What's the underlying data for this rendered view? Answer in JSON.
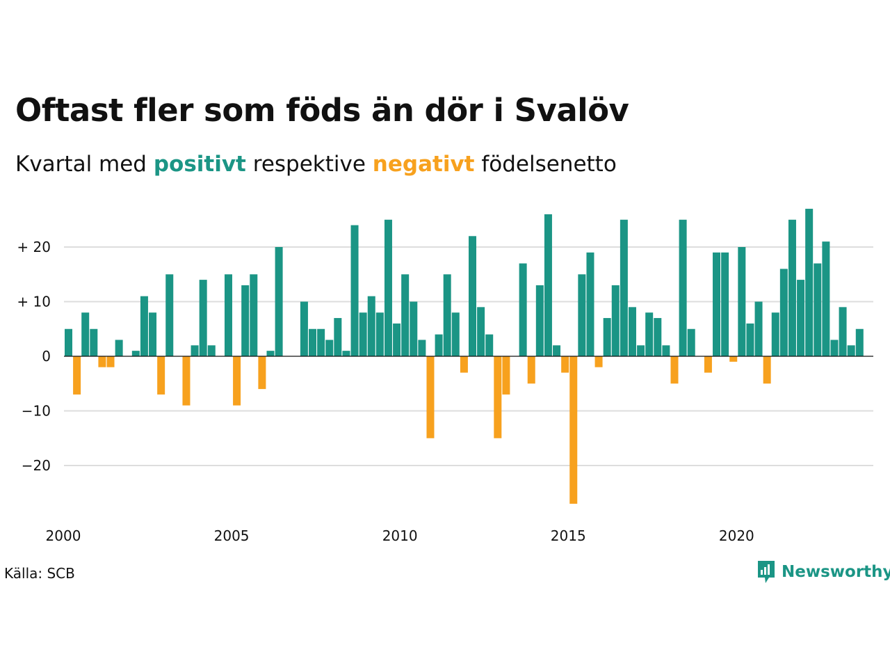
{
  "title": "Oftast fler som föds än dör i Svalöv",
  "subtitle": {
    "part1": "Kvartal med",
    "positive_word": "positivt",
    "part2": "respektive",
    "negative_word": "negativt",
    "part3": "födelsenetto"
  },
  "colors": {
    "positive": "#1b9585",
    "negative": "#f7a11e",
    "grid": "#dddddd",
    "zero_line": "#111111"
  },
  "source": "Källa: SCB",
  "brand": {
    "name": "Newsworthy",
    "icon": "newsworthy-logo-icon"
  },
  "chart_data": {
    "type": "bar",
    "x_start": "2000 Q1",
    "x_end": "2023 Q4",
    "x_tick_labels": [
      "2000",
      "2005",
      "2010",
      "2015",
      "2020"
    ],
    "y_tick_labels": [
      "+ 20",
      "+ 10",
      "0",
      "−10",
      "−20"
    ],
    "ylim": [
      -29,
      30
    ],
    "grid": true,
    "series": [
      {
        "values": [
          5,
          -7,
          8,
          5,
          -2,
          -2,
          3,
          0,
          1,
          11,
          8,
          -7,
          15,
          0,
          -9,
          2,
          14,
          2,
          0,
          15,
          -9,
          13,
          15,
          -6,
          1,
          20,
          0,
          0,
          10,
          5,
          5,
          3,
          7,
          1,
          24,
          8,
          11,
          8,
          25,
          6,
          15,
          10,
          3,
          -15,
          4,
          15,
          8,
          -3,
          22,
          9,
          4,
          -15,
          -7,
          0,
          17,
          -5,
          13,
          26,
          2,
          -3,
          -27,
          15,
          19,
          -2,
          7,
          13,
          25,
          9,
          2,
          8,
          7,
          2,
          -5,
          25,
          5,
          0,
          -3,
          19,
          19,
          -1,
          20,
          6,
          10,
          -5,
          8,
          16,
          25,
          14,
          27,
          17,
          21,
          3,
          9,
          2,
          5,
          0
        ]
      }
    ]
  }
}
